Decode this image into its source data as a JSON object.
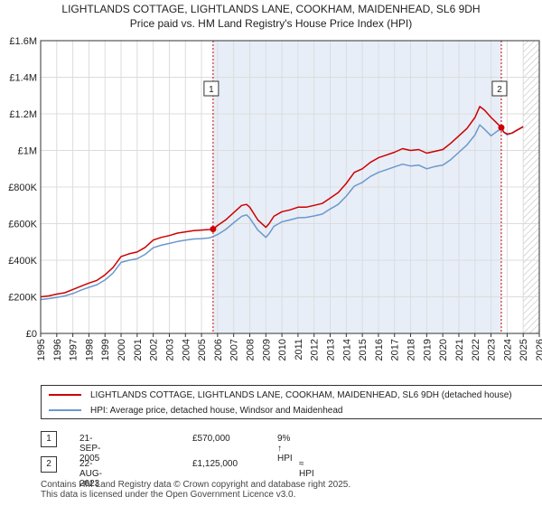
{
  "header": {
    "title_line1": "LIGHTLANDS COTTAGE, LIGHTLANDS LANE, COOKHAM, MAIDENHEAD, SL6 9DH",
    "title_line2": "Price paid vs. HM Land Registry's House Price Index (HPI)"
  },
  "colors": {
    "property": "#cc0000",
    "hpi": "#6b99cc",
    "grid": "#dcdcdc",
    "band": "#e8eef7",
    "marker_line": "#cc0000"
  },
  "chart_data": {
    "type": "line",
    "title": "LIGHTLANDS COTTAGE, LIGHTLANDS LANE, COOKHAM, MAIDENHEAD, SL6 9DH",
    "xlabel": "",
    "ylabel": "",
    "xlim": [
      1995,
      2026
    ],
    "ylim": [
      0,
      1600000
    ],
    "grid": true,
    "x_ticks": [
      1995,
      1996,
      1997,
      1998,
      1999,
      2000,
      2001,
      2002,
      2003,
      2004,
      2005,
      2006,
      2007,
      2008,
      2009,
      2010,
      2011,
      2012,
      2013,
      2014,
      2015,
      2016,
      2017,
      2018,
      2019,
      2020,
      2021,
      2022,
      2023,
      2024,
      2025,
      2026
    ],
    "y_ticks": [
      0,
      200000,
      400000,
      600000,
      800000,
      1000000,
      1200000,
      1400000,
      1600000
    ],
    "y_tick_labels": [
      "£0",
      "£200K",
      "£400K",
      "£600K",
      "£800K",
      "£1M",
      "£1.2M",
      "£1.4M",
      "£1.6M"
    ],
    "shaded_region": [
      2005.72,
      2023.64
    ],
    "forecast_start": 2025.0,
    "series": [
      {
        "name": "LIGHTLANDS COTTAGE, LIGHTLANDS LANE, COOKHAM, MAIDENHEAD, SL6 9DH (detached house)",
        "color": "#cc0000",
        "x": [
          1995.0,
          1995.5,
          1996.0,
          1996.5,
          1997.0,
          1997.5,
          1998.0,
          1998.5,
          1999.0,
          1999.5,
          2000.0,
          2000.5,
          2001.0,
          2001.5,
          2002.0,
          2002.5,
          2003.0,
          2003.5,
          2004.0,
          2004.5,
          2005.0,
          2005.5,
          2005.72,
          2006.0,
          2006.5,
          2007.0,
          2007.5,
          2007.8,
          2008.0,
          2008.5,
          2009.0,
          2009.2,
          2009.5,
          2010.0,
          2010.5,
          2011.0,
          2011.5,
          2012.0,
          2012.5,
          2013.0,
          2013.5,
          2014.0,
          2014.5,
          2015.0,
          2015.5,
          2016.0,
          2016.5,
          2017.0,
          2017.5,
          2018.0,
          2018.5,
          2019.0,
          2019.5,
          2020.0,
          2020.5,
          2021.0,
          2021.5,
          2022.0,
          2022.3,
          2022.6,
          2023.0,
          2023.3,
          2023.64,
          2023.8,
          2024.0,
          2024.3,
          2024.6,
          2025.0
        ],
        "values": [
          200000,
          205000,
          215000,
          222000,
          240000,
          258000,
          275000,
          290000,
          320000,
          360000,
          420000,
          435000,
          445000,
          470000,
          510000,
          525000,
          535000,
          548000,
          555000,
          562000,
          565000,
          568000,
          570000,
          590000,
          620000,
          660000,
          700000,
          705000,
          690000,
          620000,
          580000,
          600000,
          640000,
          665000,
          675000,
          690000,
          690000,
          700000,
          710000,
          740000,
          770000,
          820000,
          880000,
          900000,
          935000,
          960000,
          975000,
          990000,
          1010000,
          1000000,
          1005000,
          985000,
          995000,
          1005000,
          1040000,
          1080000,
          1120000,
          1180000,
          1240000,
          1220000,
          1180000,
          1155000,
          1125000,
          1100000,
          1090000,
          1095000,
          1110000,
          1130000
        ]
      },
      {
        "name": "HPI: Average price, detached house, Windsor and Maidenhead",
        "color": "#6b99cc",
        "x": [
          1995.0,
          1995.5,
          1996.0,
          1996.5,
          1997.0,
          1997.5,
          1998.0,
          1998.5,
          1999.0,
          1999.5,
          2000.0,
          2000.5,
          2001.0,
          2001.5,
          2002.0,
          2002.5,
          2003.0,
          2003.5,
          2004.0,
          2004.5,
          2005.0,
          2005.5,
          2006.0,
          2006.5,
          2007.0,
          2007.5,
          2007.8,
          2008.0,
          2008.5,
          2009.0,
          2009.2,
          2009.5,
          2010.0,
          2010.5,
          2011.0,
          2011.5,
          2012.0,
          2012.5,
          2013.0,
          2013.5,
          2014.0,
          2014.5,
          2015.0,
          2015.5,
          2016.0,
          2016.5,
          2017.0,
          2017.5,
          2018.0,
          2018.5,
          2019.0,
          2019.5,
          2020.0,
          2020.5,
          2021.0,
          2021.5,
          2022.0,
          2022.3,
          2022.6,
          2023.0,
          2023.3,
          2023.64,
          2023.8,
          2024.0,
          2024.3,
          2024.6,
          2025.0
        ],
        "values": [
          185000,
          190000,
          197000,
          205000,
          218000,
          236000,
          252000,
          266000,
          292000,
          330000,
          388000,
          400000,
          408000,
          432000,
          468000,
          482000,
          492000,
          502000,
          510000,
          516000,
          518000,
          522000,
          540000,
          568000,
          605000,
          640000,
          648000,
          630000,
          565000,
          525000,
          545000,
          585000,
          610000,
          620000,
          632000,
          634000,
          642000,
          652000,
          680000,
          705000,
          750000,
          805000,
          825000,
          858000,
          880000,
          895000,
          910000,
          925000,
          915000,
          920000,
          900000,
          912000,
          920000,
          950000,
          990000,
          1030000,
          1085000,
          1140000,
          1115000,
          1080000,
          1100000,
          1120000,
          1100000,
          1085000,
          1095000,
          1110000,
          1130000
        ]
      }
    ],
    "sales": [
      {
        "id": "1",
        "x": 2005.72,
        "value": 570000
      },
      {
        "id": "2",
        "x": 2023.64,
        "value": 1125000
      }
    ]
  },
  "legend": {
    "property_label": "LIGHTLANDS COTTAGE, LIGHTLANDS LANE, COOKHAM, MAIDENHEAD, SL6 9DH (detached house)",
    "hpi_label": "HPI: Average price, detached house, Windsor and Maidenhead"
  },
  "sales_table": [
    {
      "num": "1",
      "date": "21-SEP-2005",
      "price": "£570,000",
      "hpi": "9% ↑ HPI"
    },
    {
      "num": "2",
      "date": "22-AUG-2023",
      "price": "£1,125,000",
      "hpi": "≈ HPI"
    }
  ],
  "footer": {
    "line1": "Contains HM Land Registry data © Crown copyright and database right 2025.",
    "line2": "This data is licensed under the Open Government Licence v3.0."
  }
}
